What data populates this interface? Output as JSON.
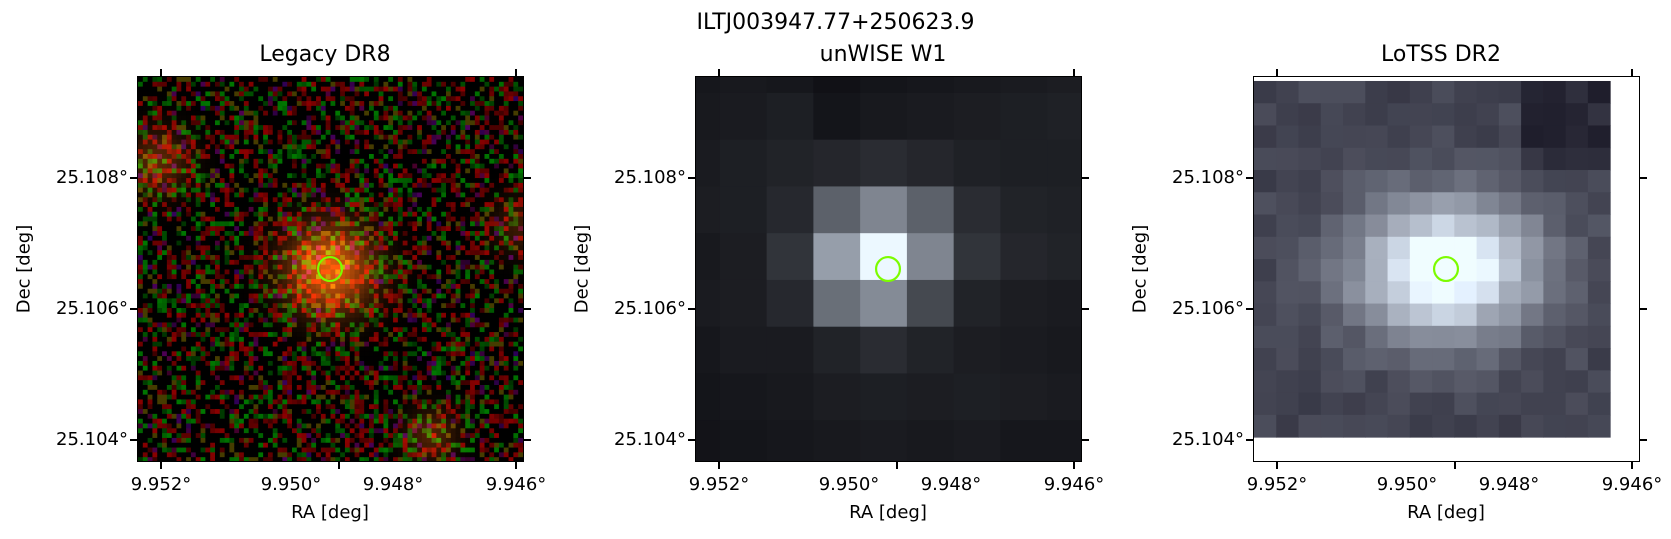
{
  "figure": {
    "suptitle": "ILTJ003947.77+250623.9"
  },
  "panels": [
    {
      "title": "Legacy DR8",
      "xlabel": "RA [deg]",
      "ylabel": "Dec [deg]",
      "x_ticks": [
        "9.952°",
        "9.950°",
        "9.948°",
        "9.946°"
      ],
      "y_ticks": [
        "25.108°",
        "25.106°",
        "25.104°"
      ],
      "image_type": "optical-rgb-noise",
      "marker_color": "#7cfc00"
    },
    {
      "title": "unWISE W1",
      "xlabel": "RA [deg]",
      "ylabel": "Dec [deg]",
      "x_ticks": [
        "9.952°",
        "9.950°",
        "9.948°",
        "9.946°"
      ],
      "y_ticks": [
        "25.108°",
        "25.106°",
        "25.104°"
      ],
      "image_type": "infrared-gray-pixelated",
      "marker_color": "#7cfc00"
    },
    {
      "title": "LoTSS DR2",
      "xlabel": "RA [deg]",
      "ylabel": "Dec [deg]",
      "x_ticks": [
        "9.952°",
        "9.950°",
        "9.948°",
        "9.946°"
      ],
      "y_ticks": [
        "25.108°",
        "25.106°",
        "25.104°"
      ],
      "image_type": "radio-bone-pixelated",
      "marker_color": "#7cfc00"
    }
  ]
}
